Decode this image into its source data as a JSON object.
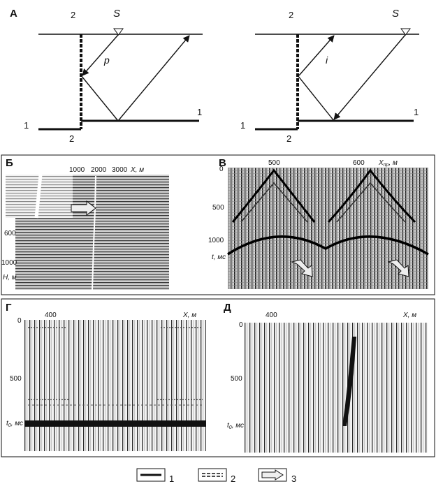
{
  "panelA": {
    "letter": "А",
    "left": {
      "num_top": "2",
      "source": "S",
      "ray": "p",
      "num_right": "1",
      "num_left": "1",
      "num_bottom": "2"
    },
    "right": {
      "num_top": "2",
      "source": "S",
      "ray": "i",
      "num_right": "1",
      "num_left": "1",
      "num_bottom": "2"
    }
  },
  "panelB": {
    "letter": "Б",
    "x_ticks": [
      "1000",
      "2000",
      "3000"
    ],
    "x_unit": "X, м",
    "y_ticks": [
      "600",
      "1000"
    ],
    "y_unit": "H, м"
  },
  "panelV": {
    "letter": "В",
    "x_ticks": [
      "500",
      "600"
    ],
    "x_unit": "X",
    "x_unit_sub": "пр",
    "x_unit_tail": ", м",
    "y_ticks": [
      "0",
      "500",
      "1000"
    ],
    "y_unit": "t, мс"
  },
  "panelG": {
    "letter": "Г",
    "x_ticks": [
      "400"
    ],
    "x_unit": "X, м",
    "y_ticks": [
      "0",
      "500"
    ],
    "y_unit": "t",
    "y_unit_sub": "0",
    "y_unit_tail": ", мс"
  },
  "panelD": {
    "letter": "Д",
    "x_ticks": [
      "400"
    ],
    "x_unit": "X, м",
    "y_ticks": [
      "0",
      "500"
    ],
    "y_unit": "t",
    "y_unit_sub": "0",
    "y_unit_tail": ", мс"
  },
  "legend": [
    "1",
    "2",
    "3"
  ]
}
